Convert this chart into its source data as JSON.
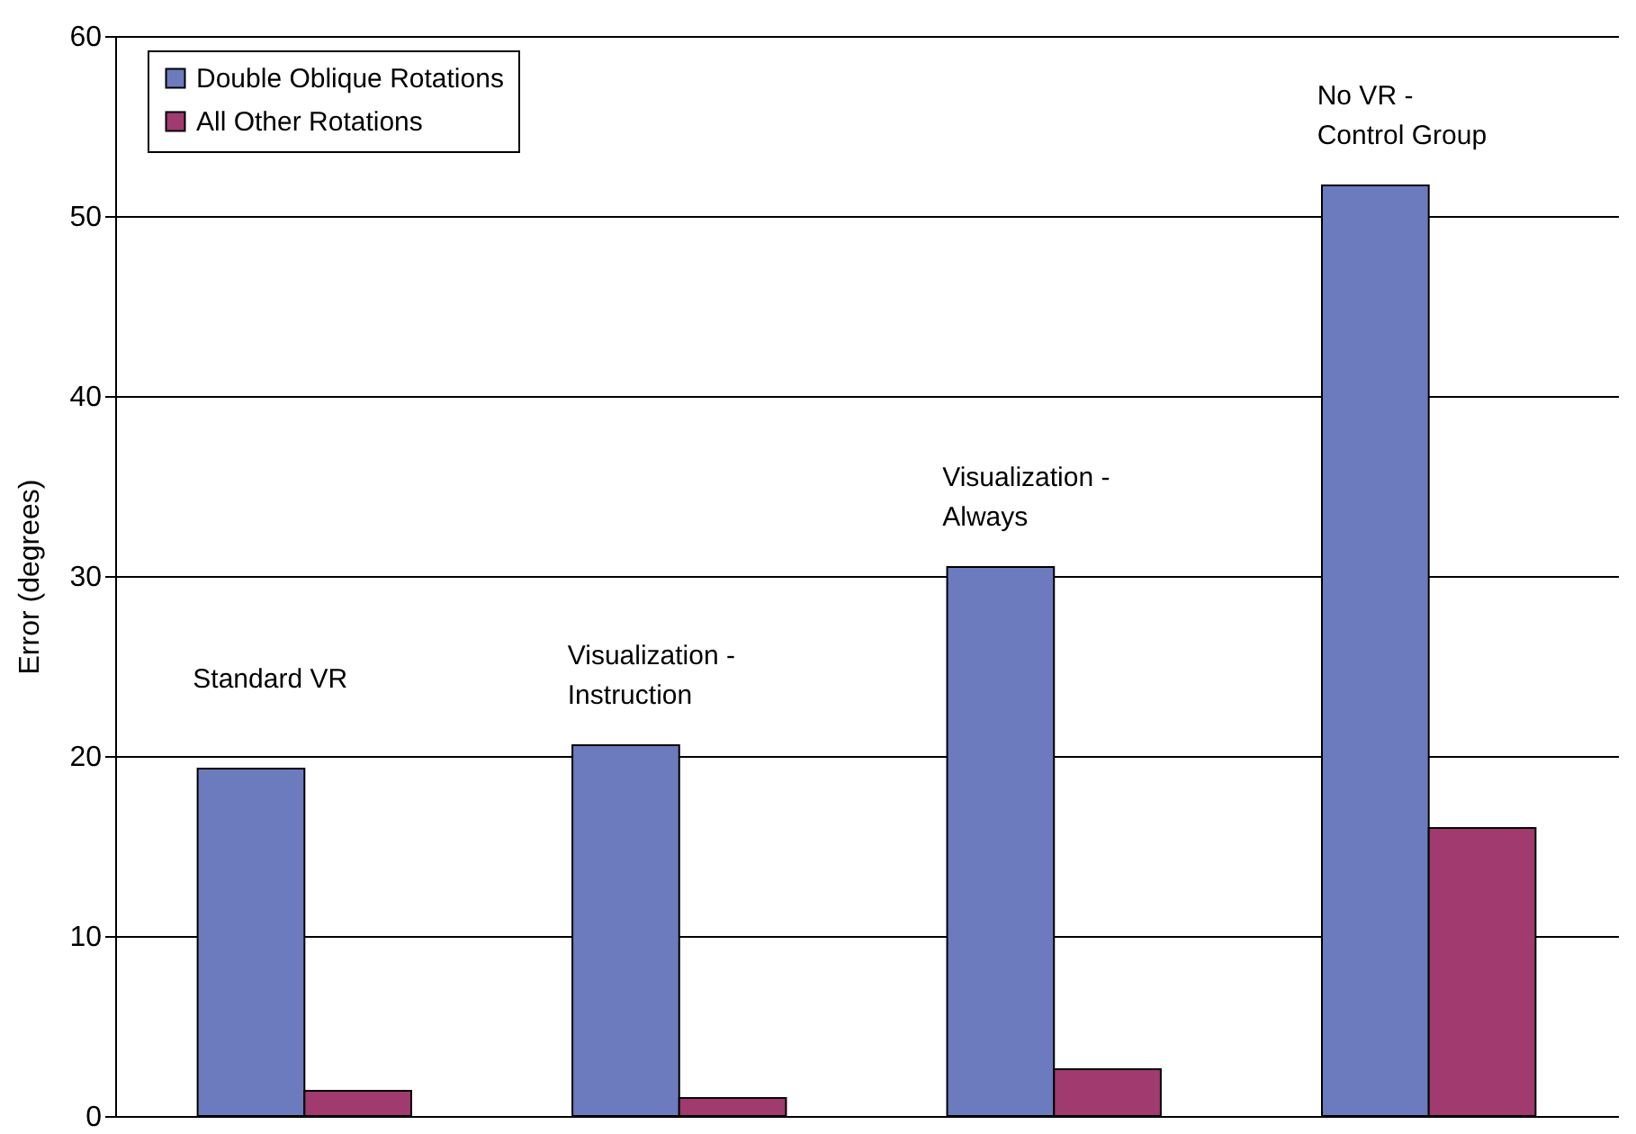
{
  "chart_data": {
    "type": "bar",
    "ylabel": "Error (degrees)",
    "categories": [
      "Standard VR",
      "Visualization - Instruction",
      "Visualization - Always",
      "No VR - Control Group"
    ],
    "series": [
      {
        "name": "Double Oblique Rotations",
        "color": "#6b7bbd",
        "values": [
          19.3,
          20.6,
          30.5,
          51.7
        ]
      },
      {
        "name": "All Other Rotations",
        "color": "#a03a6f",
        "values": [
          1.4,
          1.0,
          2.6,
          16.0
        ]
      }
    ],
    "ylim": [
      0,
      60
    ],
    "yticks": [
      0,
      10,
      20,
      30,
      40,
      50,
      60
    ],
    "grid": "y",
    "legend": "top left"
  }
}
